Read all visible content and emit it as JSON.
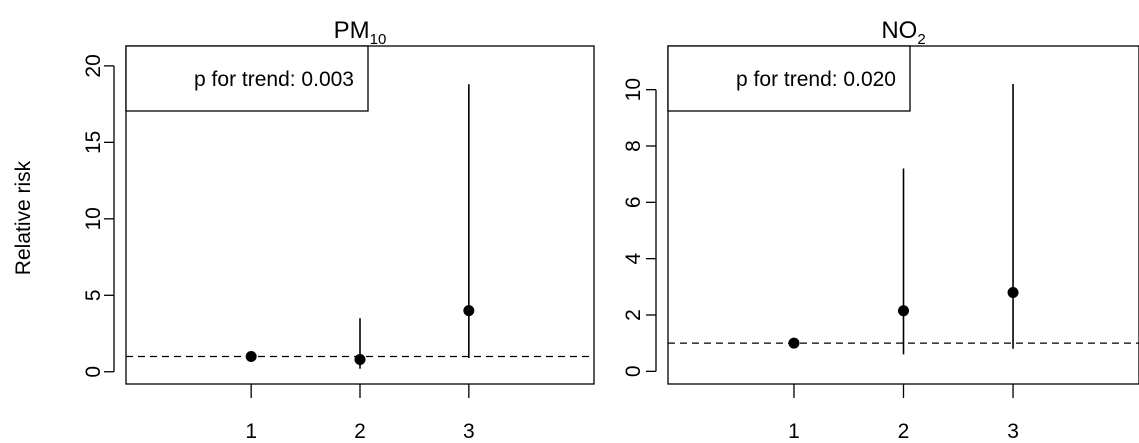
{
  "ylabel": "Relative risk",
  "chart_data": [
    {
      "type": "scatter",
      "title_main": "PM",
      "title_sub": "10",
      "annotation": "p for trend: 0.003",
      "x": [
        1,
        2,
        3
      ],
      "y": [
        1.0,
        0.8,
        4.0
      ],
      "ci_lower": [
        1.0,
        0.2,
        0.9
      ],
      "ci_upper": [
        1.0,
        3.5,
        18.8
      ],
      "reference_line": 1,
      "xticks": [
        1,
        2,
        3
      ],
      "xtick_labels": [
        "1",
        "2",
        "3"
      ],
      "yticks": [
        0,
        5,
        10,
        15,
        20
      ],
      "ytick_labels": [
        "0",
        "5",
        "10",
        "15",
        "20"
      ],
      "ylim": [
        -0.8,
        21.3
      ],
      "xlim": [
        -0.15,
        4.15
      ],
      "grid": false,
      "legend_position": "top-left"
    },
    {
      "type": "scatter",
      "title_main": "NO",
      "title_sub": "2",
      "annotation": "p for trend: 0.020",
      "x": [
        1,
        2,
        3
      ],
      "y": [
        1.0,
        2.15,
        2.8
      ],
      "ci_lower": [
        1.0,
        0.6,
        0.8
      ],
      "ci_upper": [
        1.0,
        7.2,
        10.2
      ],
      "reference_line": 1,
      "xticks": [
        1,
        2,
        3
      ],
      "xtick_labels": [
        "1",
        "2",
        "3"
      ],
      "yticks": [
        0,
        2,
        4,
        6,
        8,
        10
      ],
      "ytick_labels": [
        "0",
        "2",
        "4",
        "6",
        "8",
        "10"
      ],
      "ylim": [
        -0.45,
        11.55
      ],
      "xlim": [
        -0.15,
        4.15
      ],
      "grid": false,
      "legend_position": "top-left"
    }
  ]
}
